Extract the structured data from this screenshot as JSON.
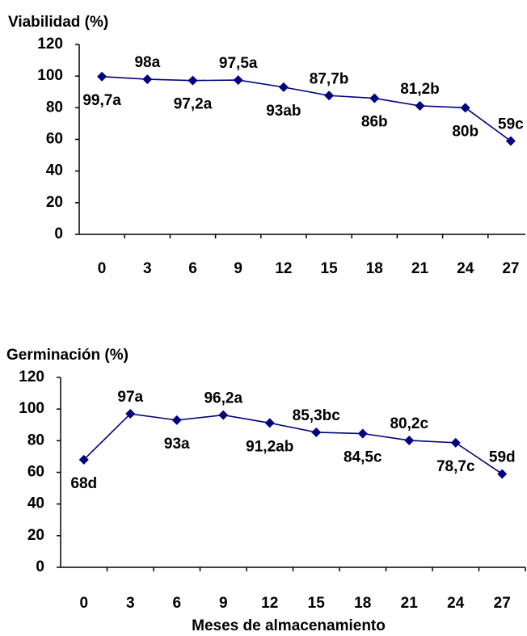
{
  "chart_data": [
    {
      "type": "line",
      "title": "Viabilidad (%)",
      "categories": [
        "0",
        "3",
        "6",
        "9",
        "12",
        "15",
        "18",
        "21",
        "24",
        "27"
      ],
      "values": [
        99.7,
        98,
        97.2,
        97.5,
        93,
        87.7,
        86,
        81.2,
        80,
        59
      ],
      "value_labels": [
        "99,7a",
        "98a",
        "97,2a",
        "97,5a",
        "93ab",
        "87,7b",
        "86b",
        "81,2b",
        "80b",
        "59c"
      ],
      "color": "#000080",
      "ylim": [
        0,
        120
      ],
      "yticks": [
        0,
        20,
        40,
        60,
        80,
        100,
        120
      ]
    },
    {
      "type": "line",
      "title": "Germinación (%)",
      "xlabel": "Meses de almacenamiento",
      "categories": [
        "0",
        "3",
        "6",
        "9",
        "12",
        "15",
        "18",
        "21",
        "24",
        "27"
      ],
      "values": [
        68,
        97,
        93,
        96.2,
        91.2,
        85.3,
        84.5,
        80.2,
        78.7,
        59
      ],
      "value_labels": [
        "68d",
        "97a",
        "93a",
        "96,2a",
        "91,2ab",
        "85,3bc",
        "84,5c",
        "80,2c",
        "78,7c",
        "59d"
      ],
      "color": "#000080",
      "ylim": [
        0,
        120
      ],
      "yticks": [
        0,
        20,
        40,
        60,
        80,
        100,
        120
      ]
    }
  ]
}
